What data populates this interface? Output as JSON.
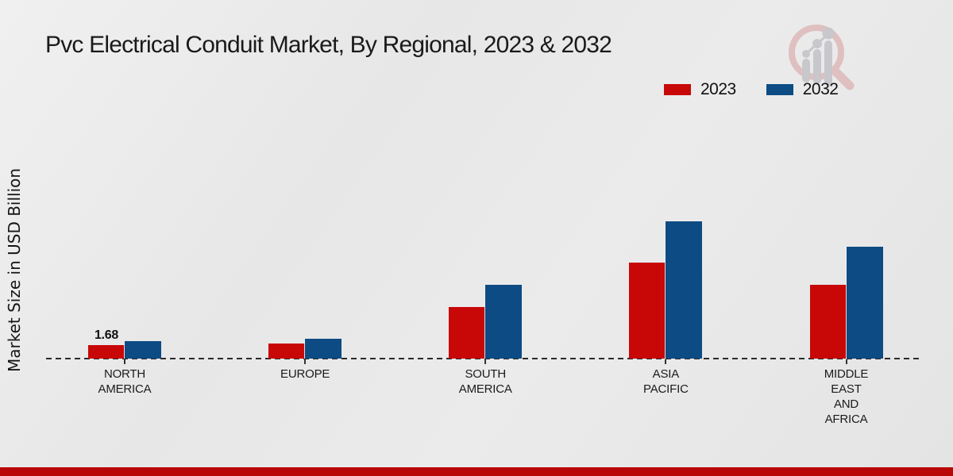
{
  "title": "Pvc Electrical Conduit Market, By Regional, 2023 & 2032",
  "y_axis_label": "Market Size in USD Billion",
  "legend": {
    "items": [
      {
        "label": "2023",
        "color": "#c80707"
      },
      {
        "label": "2032",
        "color": "#0d4b84"
      }
    ]
  },
  "colors": {
    "series_2023": "#c80707",
    "series_2032": "#0d4b84",
    "footer_accent_bar": "#b90707",
    "baseline": "#2b2b2b",
    "logo_red": "#debbbb",
    "logo_gray": "#c4c4c9"
  },
  "chart_data": {
    "type": "bar",
    "title": "Pvc Electrical Conduit Market, By Regional, 2023 & 2032",
    "xlabel": "",
    "ylabel": "Market Size in USD Billion",
    "categories": [
      "NORTH AMERICA",
      "EUROPE",
      "SOUTH AMERICA",
      "ASIA PACIFIC",
      "MIDDLE EAST AND AFRICA"
    ],
    "category_label_lines": [
      [
        "NORTH",
        "AMERICA"
      ],
      [
        "EUROPE"
      ],
      [
        "SOUTH",
        "AMERICA"
      ],
      [
        "ASIA",
        "PACIFIC"
      ],
      [
        "MIDDLE",
        "EAST",
        "AND",
        "AFRICA"
      ]
    ],
    "series": [
      {
        "name": "2023",
        "color": "#c80707",
        "values": [
          1.68,
          1.82,
          6.24,
          11.62,
          8.98
        ]
      },
      {
        "name": "2032",
        "color": "#0d4b84",
        "values": [
          2.16,
          2.45,
          8.93,
          16.61,
          13.54
        ]
      }
    ],
    "data_labels": [
      {
        "category_index": 0,
        "series_index": 0,
        "text": "1.68"
      }
    ],
    "ylim": [
      0,
      17
    ],
    "grid": false,
    "baseline_style": "dashed",
    "legend_position": "top-right",
    "units": "USD Billion"
  }
}
